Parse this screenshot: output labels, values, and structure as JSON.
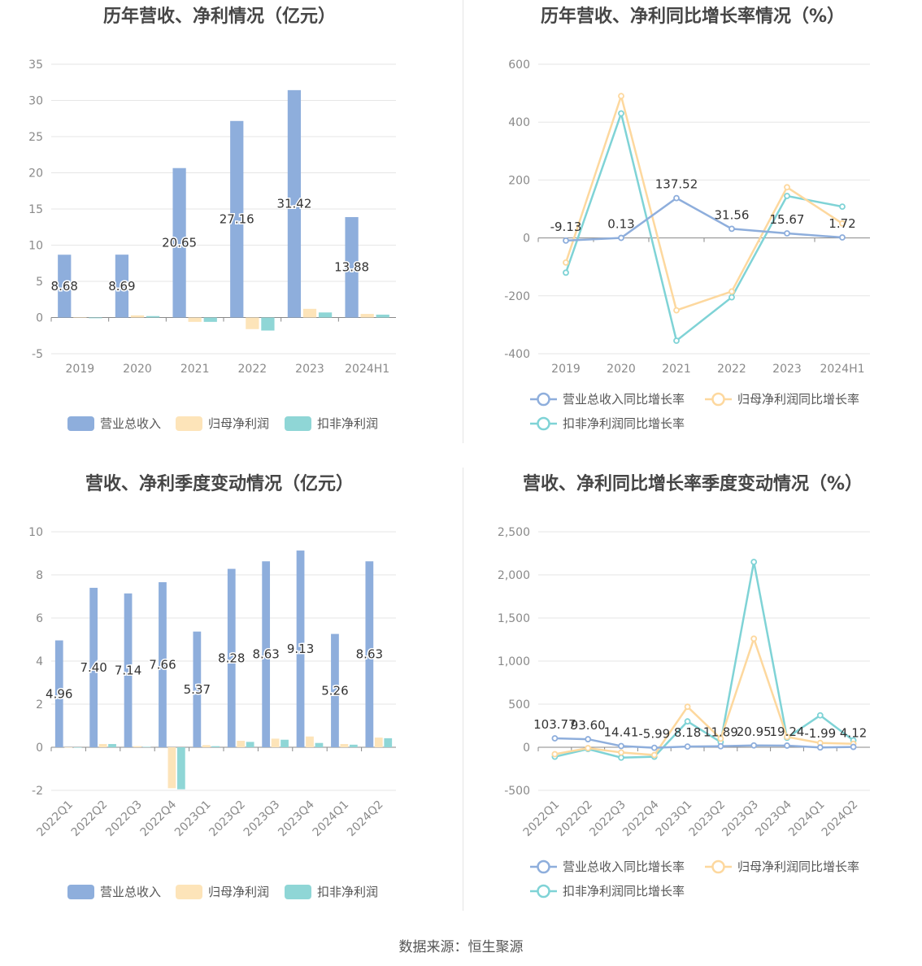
{
  "footer": "数据来源：恒生聚源",
  "chart_data": [
    {
      "id": "annual-amounts",
      "type": "bar",
      "title": "历年营收、净利情况（亿元）",
      "categories": [
        "2019",
        "2020",
        "2021",
        "2022",
        "2023",
        "2024H1"
      ],
      "ylim": [
        -5,
        35
      ],
      "yticks": [
        -5,
        0,
        5,
        10,
        15,
        20,
        25,
        30,
        35
      ],
      "grid": true,
      "legend_position": "bottom",
      "series": [
        {
          "name": "营业总收入",
          "color": "#8eaedc",
          "values": [
            8.68,
            8.69,
            20.65,
            27.16,
            31.42,
            13.88
          ],
          "labels": [
            "8.68",
            "8.69",
            "20.65",
            "27.16",
            "31.42",
            "13.88"
          ]
        },
        {
          "name": "归母净利润",
          "color": "#fde4b9",
          "values": [
            0.0,
            0.3,
            -0.6,
            -1.6,
            1.2,
            0.5
          ]
        },
        {
          "name": "扣非净利润",
          "color": "#8fd6d6",
          "values": [
            -0.1,
            0.2,
            -0.6,
            -1.8,
            0.7,
            0.4
          ]
        }
      ]
    },
    {
      "id": "annual-growth",
      "type": "line",
      "title": "历年营收、净利同比增长率情况（%）",
      "categories": [
        "2019",
        "2020",
        "2021",
        "2022",
        "2023",
        "2024H1"
      ],
      "ylim": [
        -400,
        600
      ],
      "yticks": [
        -400,
        -200,
        0,
        200,
        400,
        600
      ],
      "grid": true,
      "legend_position": "bottom",
      "series": [
        {
          "name": "营业总收入同比增长率",
          "color": "#8eaedc",
          "values": [
            -9.13,
            0.13,
            137.52,
            31.56,
            15.67,
            1.72
          ],
          "labels": [
            "-9.13",
            "0.13",
            "137.52",
            "31.56",
            "15.67",
            "1.72"
          ]
        },
        {
          "name": "归母净利润同比增长率",
          "color": "#fdd89e",
          "values": [
            -85,
            490,
            -250,
            -185,
            175,
            50
          ]
        },
        {
          "name": "扣非净利润同比增长率",
          "color": "#7fd3d6",
          "values": [
            -120,
            430,
            -355,
            -205,
            145,
            108
          ]
        }
      ]
    },
    {
      "id": "quarterly-amounts",
      "type": "bar",
      "title": "营收、净利季度变动情况（亿元）",
      "categories": [
        "2022Q1",
        "2022Q2",
        "2022Q3",
        "2022Q4",
        "2023Q1",
        "2023Q2",
        "2023Q3",
        "2023Q4",
        "2024Q1",
        "2024Q2"
      ],
      "ylim": [
        -2,
        10
      ],
      "yticks": [
        -2,
        0,
        2,
        4,
        6,
        8,
        10
      ],
      "grid": true,
      "legend_position": "bottom",
      "series": [
        {
          "name": "营业总收入",
          "color": "#8eaedc",
          "values": [
            4.96,
            7.4,
            7.14,
            7.66,
            5.37,
            8.28,
            8.63,
            9.13,
            5.26,
            8.63
          ],
          "labels": [
            "4.96",
            "7.40",
            "7.14",
            "7.66",
            "5.37",
            "8.28",
            "8.63",
            "9.13",
            "5.26",
            "8.63"
          ]
        },
        {
          "name": "归母净利润",
          "color": "#fde4b9",
          "values": [
            0.0,
            0.15,
            0.05,
            -1.9,
            0.1,
            0.3,
            0.4,
            0.5,
            0.15,
            0.45
          ]
        },
        {
          "name": "扣非净利润",
          "color": "#8fd6d6",
          "values": [
            -0.02,
            0.15,
            0.02,
            -1.95,
            0.05,
            0.25,
            0.35,
            0.2,
            0.12,
            0.42
          ]
        }
      ]
    },
    {
      "id": "quarterly-growth",
      "type": "line",
      "title": "营收、净利同比增长率季度变动情况（%）",
      "categories": [
        "2022Q1",
        "2022Q2",
        "2022Q3",
        "2022Q4",
        "2023Q1",
        "2023Q2",
        "2023Q3",
        "2023Q4",
        "2024Q1",
        "2024Q2"
      ],
      "ylim": [
        -500,
        2500
      ],
      "yticks": [
        -500,
        0,
        500,
        1000,
        1500,
        2000,
        2500
      ],
      "ytick_labels": [
        "-500",
        "0",
        "500",
        "1,000",
        "1,500",
        "2,000",
        "2,500"
      ],
      "grid": true,
      "legend_position": "bottom",
      "series": [
        {
          "name": "营业总收入同比增长率",
          "color": "#8eaedc",
          "values": [
            103.77,
            93.6,
            14.41,
            -5.99,
            8.18,
            11.89,
            20.95,
            19.24,
            -1.99,
            4.12
          ],
          "labels": [
            "103.77",
            "93.60",
            "14.41",
            "-5.99",
            "8.18",
            "11.89",
            "20.95",
            "19.24",
            "-1.99",
            "4.12"
          ]
        },
        {
          "name": "归母净利润同比增长率",
          "color": "#fdd89e",
          "values": [
            -80,
            -10,
            -60,
            -90,
            470,
            100,
            1260,
            120,
            50,
            40
          ]
        },
        {
          "name": "扣非净利润同比增长率",
          "color": "#7fd3d6",
          "values": [
            -110,
            -20,
            -120,
            -110,
            300,
            60,
            2150,
            110,
            370,
            80
          ]
        }
      ]
    }
  ]
}
